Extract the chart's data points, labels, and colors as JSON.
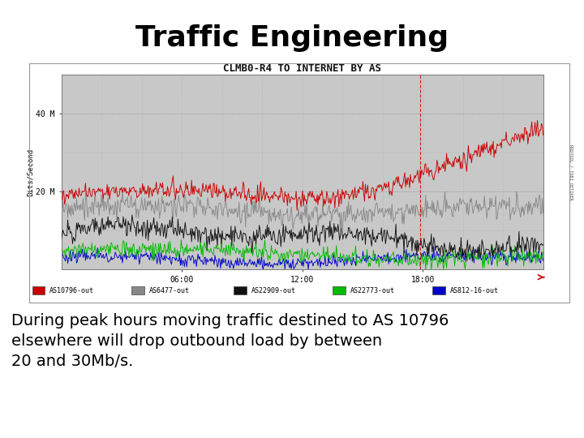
{
  "title": "Traffic Engineering",
  "graph_title": "CLMB0-R4 TO INTERNET BY AS",
  "ylabel": "Bits/Second",
  "xtick_labels": [
    "06:00",
    "12:00",
    "18:00"
  ],
  "ytick_labels": [
    "20 M",
    "40 M"
  ],
  "background_color": "#ffffff",
  "graph_bg_color": "#c8c8c8",
  "outer_border_color": "#aaaaaa",
  "body_text": "During peak hours moving traffic destined to AS 10796\nelsewhere will drop outbound load by between\n20 and 30Mb/s.",
  "legend_entries": [
    {
      "label": "AS10796-out",
      "color": "#cc0000"
    },
    {
      "label": "AS6477-out",
      "color": "#888888"
    },
    {
      "label": "AS22909-out",
      "color": "#111111"
    },
    {
      "label": "AS22773-out",
      "color": "#00bb00"
    },
    {
      "label": "AS812-16-out",
      "color": "#0000cc"
    }
  ],
  "title_fontsize": 26,
  "body_fontsize": 14,
  "graph_title_fontsize": 9,
  "seed": 42,
  "n_points": 600
}
